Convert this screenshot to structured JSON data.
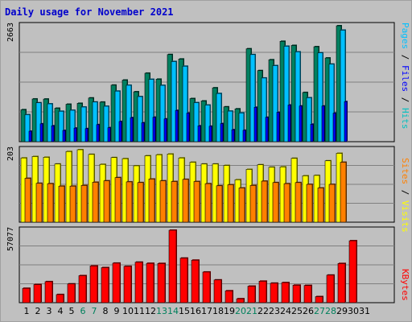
{
  "title": "Daily usage for November 2021",
  "colors": {
    "hits": "#00c0c0",
    "files": "#0000ff",
    "pages": "#00c0ff",
    "visits": "#ffff00",
    "sites": "#ff8000",
    "kbytes": "#ff0000",
    "weekend_day": "#00805c",
    "weekday": "#000000"
  },
  "chart_data": [
    {
      "type": "bar",
      "panel": "hits-files-pages",
      "ymax_label": "2663",
      "ylim": [
        0,
        2663
      ],
      "categories": [
        "1",
        "2",
        "3",
        "4",
        "5",
        "6",
        "7",
        "8",
        "9",
        "10",
        "11",
        "12",
        "13",
        "14",
        "15",
        "16",
        "17",
        "18",
        "19",
        "20",
        "21",
        "22",
        "23",
        "24",
        "25",
        "26",
        "27",
        "28",
        "29",
        "30",
        "31"
      ],
      "series": [
        {
          "name": "Hits",
          "values": [
            735,
            981,
            979,
            768,
            860,
            881,
            1004,
            909,
            1299,
            1415,
            1146,
            1573,
            1436,
            2002,
            1899,
            990,
            935,
            1237,
            800,
            754,
            2134,
            1633,
            1882,
            2306,
            2211,
            1130,
            2182,
            1923,
            2663,
            0,
            0
          ]
        },
        {
          "name": "Files",
          "values": [
            621,
            894,
            869,
            699,
            722,
            796,
            911,
            814,
            1162,
            1296,
            1036,
            1433,
            1294,
            1842,
            1734,
            897,
            842,
            1107,
            702,
            661,
            2001,
            1463,
            1748,
            2194,
            2064,
            1010,
            2042,
            1782,
            2563,
            0,
            0
          ]
        },
        {
          "name": "Pages",
          "values": [
            240,
            410,
            365,
            258,
            312,
            300,
            392,
            322,
            464,
            552,
            434,
            562,
            523,
            718,
            656,
            364,
            355,
            415,
            275,
            262,
            790,
            560,
            675,
            842,
            820,
            401,
            819,
            655,
            920,
            0,
            0
          ]
        }
      ],
      "legend": [
        "Pages",
        "Files",
        "Hits"
      ]
    },
    {
      "type": "bar",
      "panel": "visits-sites",
      "ymax_label": "203",
      "ylim": [
        0,
        203
      ],
      "categories": [
        "1",
        "2",
        "3",
        "4",
        "5",
        "6",
        "7",
        "8",
        "9",
        "10",
        "11",
        "12",
        "13",
        "14",
        "15",
        "16",
        "17",
        "18",
        "19",
        "20",
        "21",
        "22",
        "23",
        "24",
        "25",
        "26",
        "27",
        "28",
        "29",
        "30",
        "31"
      ],
      "series": [
        {
          "name": "Visits",
          "values": [
            180,
            184,
            182,
            163,
            198,
            203,
            190,
            162,
            181,
            178,
            158,
            186,
            189,
            191,
            180,
            168,
            163,
            163,
            159,
            119,
            148,
            161,
            154,
            155,
            179,
            130,
            131,
            172,
            193,
            0,
            0
          ]
        },
        {
          "name": "Sites",
          "values": [
            123,
            109,
            108,
            101,
            101,
            103,
            112,
            116,
            125,
            113,
            111,
            121,
            116,
            114,
            120,
            114,
            108,
            102,
            105,
            96,
            103,
            115,
            111,
            108,
            111,
            106,
            96,
            106,
            168,
            0,
            0
          ]
        }
      ],
      "legend": [
        "Sites",
        "Visits"
      ]
    },
    {
      "type": "bar",
      "panel": "kbytes",
      "ymax_label": "57077",
      "ylim": [
        0,
        57077
      ],
      "categories": [
        "1",
        "2",
        "3",
        "4",
        "5",
        "6",
        "7",
        "8",
        "9",
        "10",
        "11",
        "12",
        "13",
        "14",
        "15",
        "16",
        "17",
        "18",
        "19",
        "20",
        "21",
        "22",
        "23",
        "24",
        "25",
        "26",
        "27",
        "28",
        "29",
        "30",
        "31"
      ],
      "series": [
        {
          "name": "KBytes",
          "values": [
            11320,
            14290,
            16560,
            6420,
            14790,
            21300,
            28950,
            27620,
            31150,
            28650,
            31900,
            31000,
            30900,
            57077,
            35100,
            33500,
            24150,
            17920,
            9370,
            3100,
            13000,
            16950,
            15360,
            15840,
            13780,
            13590,
            4780,
            21720,
            30880,
            48800,
            0
          ]
        }
      ],
      "legend": [
        "KBytes"
      ]
    }
  ],
  "x_axis": {
    "labels": [
      "1",
      "2",
      "3",
      "4",
      "5",
      "6",
      "7",
      "8",
      "9",
      "10",
      "11",
      "12",
      "13",
      "14",
      "15",
      "16",
      "17",
      "18",
      "19",
      "20",
      "21",
      "22",
      "23",
      "24",
      "25",
      "26",
      "27",
      "28",
      "29",
      "30",
      "31"
    ],
    "weekend": [
      "6",
      "7",
      "13",
      "14",
      "20",
      "21",
      "27",
      "28"
    ]
  }
}
